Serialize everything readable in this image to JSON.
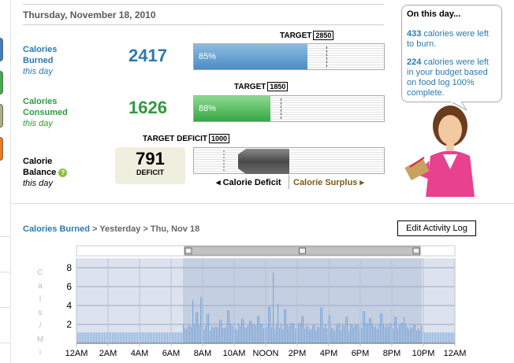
{
  "date_header": "Thursday, November 18, 2010",
  "rows": {
    "burned": {
      "label_line1": "Calories",
      "label_line2": "Burned",
      "sub": "this day",
      "value": "2417",
      "percent": "85%",
      "fraction": 0.85,
      "target_label": "TARGET",
      "target_value": "2850",
      "color": "#2a7ab0"
    },
    "consumed": {
      "label_line1": "Calories",
      "label_line2": "Consumed",
      "sub": "this day",
      "value": "1626",
      "percent": "88%",
      "fraction": 0.88,
      "target_label": "TARGET",
      "target_value": "1850",
      "color": "#2e9b3c"
    },
    "balance": {
      "label_line1": "Calorie",
      "label_line2": "Balance",
      "sub": "this day",
      "value": "791",
      "value_label": "DEFICIT",
      "target_label": "TARGET DEFICIT",
      "target_value": "1000",
      "deficit_link": "Calorie Deficit",
      "surplus_link": "Calorie Surplus"
    }
  },
  "on_this_day": {
    "heading": "On this day...",
    "msg1_num": "433",
    "msg1_text": "calories were left to burn.",
    "msg2_num": "224",
    "msg2_text": "calories were left in your budget based on food log 100% complete."
  },
  "breadcrumb": {
    "link": "Calories Burned",
    "sep1": ">",
    "yesterday": "Yesterday",
    "sep2": ">",
    "current": "Thu, Nov 18"
  },
  "edit_button": "Edit Activity Log",
  "chart_data": {
    "type": "bar",
    "ylabel": "Cals / Min",
    "ylim": [
      0,
      9
    ],
    "yticks": [
      2,
      4,
      6,
      8
    ],
    "xticks": [
      "12AM",
      "2AM",
      "4AM",
      "6AM",
      "8AM",
      "10AM",
      "NOON",
      "2PM",
      "4PM",
      "6PM",
      "8PM",
      "10PM",
      "12AM"
    ],
    "x_hours": [
      0,
      24
    ],
    "baseline": 1.15,
    "selection_hours": [
      6.75,
      21.9
    ],
    "peaks": [
      {
        "hour": 7.35,
        "value": 4.6
      },
      {
        "hour": 7.6,
        "value": 3.3
      },
      {
        "hour": 7.9,
        "value": 4.9
      },
      {
        "hour": 8.3,
        "value": 3.1
      },
      {
        "hour": 9.1,
        "value": 2.5
      },
      {
        "hour": 9.6,
        "value": 3.5
      },
      {
        "hour": 10.5,
        "value": 2.6
      },
      {
        "hour": 11.0,
        "value": 2.4
      },
      {
        "hour": 11.5,
        "value": 2.9
      },
      {
        "hour": 12.2,
        "value": 3.9
      },
      {
        "hour": 12.45,
        "value": 7.5
      },
      {
        "hour": 12.75,
        "value": 4.2
      },
      {
        "hour": 13.2,
        "value": 3.6
      },
      {
        "hour": 14.3,
        "value": 2.9
      },
      {
        "hour": 15.5,
        "value": 3.8
      },
      {
        "hour": 16.0,
        "value": 3.0
      },
      {
        "hour": 17.1,
        "value": 2.8
      },
      {
        "hour": 18.2,
        "value": 3.4
      },
      {
        "hour": 18.6,
        "value": 2.7
      },
      {
        "hour": 19.3,
        "value": 3.2
      },
      {
        "hour": 20.2,
        "value": 2.8
      },
      {
        "hour": 20.75,
        "value": 2.8
      },
      {
        "hour": 21.4,
        "value": 1.9
      }
    ]
  },
  "colors": {
    "link": "#2a7ab0",
    "burned_fill": "#6aa2cc",
    "consumed_fill": "#4fba5a",
    "chart_bg": "#c5cfe2",
    "chart_bar": "#7fa8d8"
  }
}
